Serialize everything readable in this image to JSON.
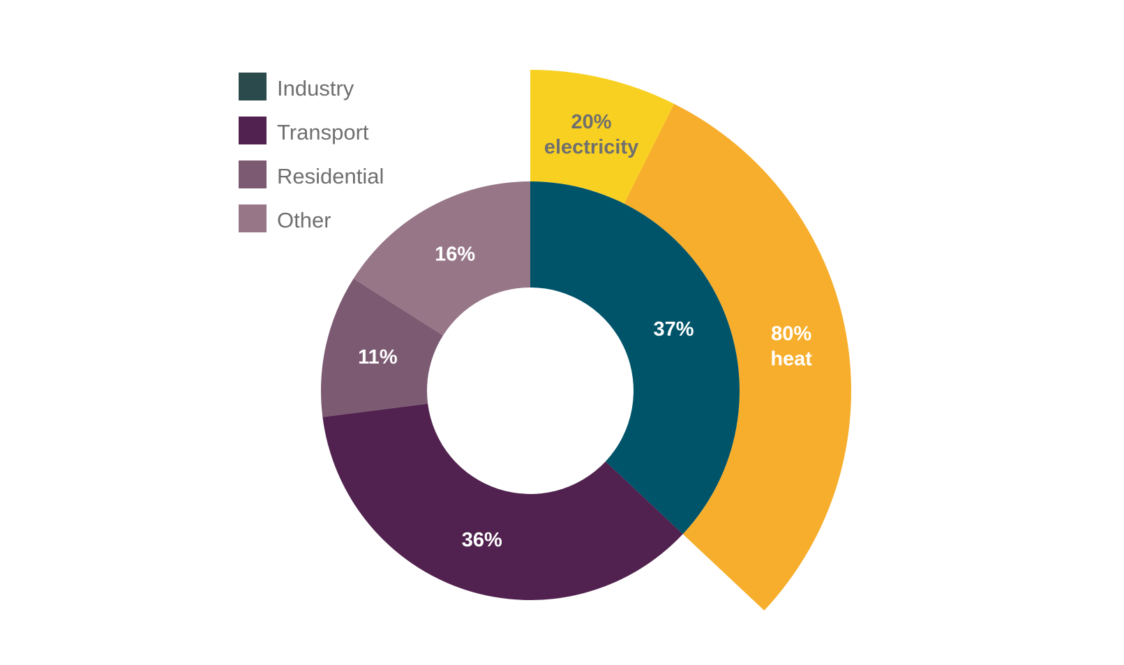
{
  "chart_data": {
    "type": "pie",
    "subtype": "donut-with-outer-breakdown",
    "legend_position": "top-left",
    "series": [
      {
        "name": "Industry",
        "value": 37,
        "display": "37%",
        "color": "#005469",
        "legend_color": "#2b4a4b",
        "label_color": "#ffffff"
      },
      {
        "name": "Transport",
        "value": 36,
        "display": "36%",
        "color": "#51224f",
        "legend_color": "#51224f",
        "label_color": "#ffffff"
      },
      {
        "name": "Residential",
        "value": 11,
        "display": "11%",
        "color": "#7c5a72",
        "legend_color": "#7c5a72",
        "label_color": "#ffffff"
      },
      {
        "name": "Other",
        "value": 16,
        "display": "16%",
        "color": "#967687",
        "legend_color": "#967687",
        "label_color": "#ffffff"
      }
    ],
    "outer_breakdown": {
      "parent": "Industry",
      "parts": [
        {
          "name": "electricity",
          "value": 20,
          "line1": "20%",
          "line2": "electricity",
          "color": "#f8d021",
          "label_color": "#6f6f6f"
        },
        {
          "name": "heat",
          "value": 80,
          "line1": "80%",
          "line2": "heat",
          "color": "#f7ae2c",
          "label_color": "#ffffff"
        }
      ]
    }
  }
}
